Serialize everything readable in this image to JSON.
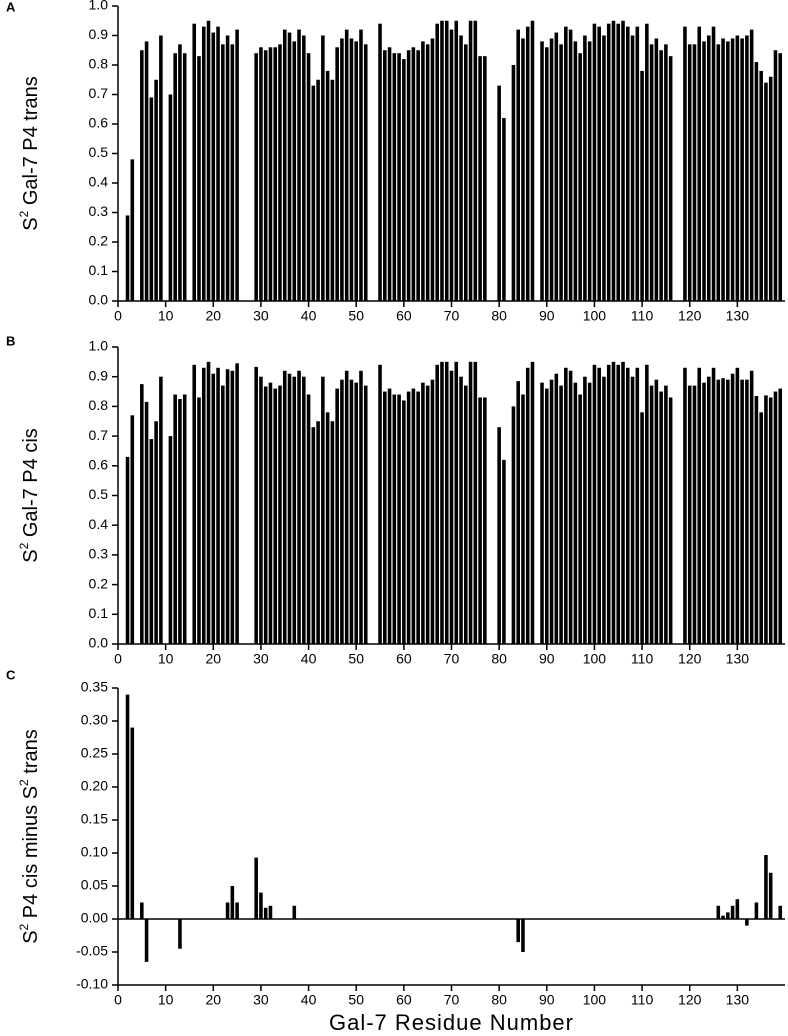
{
  "chart_data": [
    {
      "type": "bar",
      "panel": "A",
      "ylabel_parts": [
        "S",
        "2",
        " Gal-7 P4 trans"
      ],
      "xlabel": "Gal-7 Residue Number",
      "color": "#000000",
      "x": [
        2,
        3,
        5,
        6,
        7,
        8,
        9,
        11,
        12,
        13,
        14,
        16,
        17,
        18,
        19,
        20,
        21,
        22,
        23,
        24,
        25,
        29,
        30,
        31,
        32,
        33,
        34,
        35,
        36,
        37,
        38,
        39,
        40,
        41,
        42,
        43,
        44,
        45,
        46,
        47,
        48,
        49,
        50,
        51,
        52,
        55,
        56,
        57,
        58,
        59,
        60,
        61,
        62,
        63,
        64,
        65,
        66,
        67,
        68,
        69,
        70,
        71,
        72,
        73,
        74,
        75,
        76,
        77,
        80,
        81,
        83,
        84,
        85,
        86,
        87,
        89,
        90,
        91,
        92,
        93,
        94,
        95,
        96,
        97,
        98,
        99,
        100,
        101,
        102,
        103,
        104,
        105,
        106,
        107,
        108,
        109,
        110,
        111,
        112,
        113,
        114,
        115,
        116,
        119,
        120,
        121,
        122,
        123,
        124,
        125,
        126,
        127,
        128,
        129,
        130,
        131,
        132,
        133,
        134,
        135,
        136,
        137,
        138,
        139
      ],
      "values": [
        0.29,
        0.48,
        0.85,
        0.88,
        0.69,
        0.75,
        0.9,
        0.7,
        0.84,
        0.87,
        0.84,
        0.94,
        0.83,
        0.93,
        0.95,
        0.91,
        0.93,
        0.87,
        0.9,
        0.87,
        0.92,
        0.84,
        0.86,
        0.85,
        0.86,
        0.86,
        0.87,
        0.92,
        0.91,
        0.88,
        0.92,
        0.9,
        0.84,
        0.73,
        0.75,
        0.9,
        0.78,
        0.75,
        0.86,
        0.89,
        0.92,
        0.89,
        0.88,
        0.92,
        0.87,
        0.94,
        0.85,
        0.86,
        0.84,
        0.84,
        0.82,
        0.85,
        0.86,
        0.85,
        0.88,
        0.87,
        0.89,
        0.94,
        0.95,
        0.95,
        0.92,
        0.95,
        0.9,
        0.87,
        0.95,
        0.95,
        0.83,
        0.83,
        0.73,
        0.62,
        0.8,
        0.92,
        0.89,
        0.93,
        0.95,
        0.88,
        0.86,
        0.89,
        0.91,
        0.87,
        0.93,
        0.92,
        0.88,
        0.84,
        0.9,
        0.88,
        0.94,
        0.93,
        0.9,
        0.94,
        0.95,
        0.94,
        0.95,
        0.93,
        0.9,
        0.93,
        0.78,
        0.94,
        0.87,
        0.89,
        0.85,
        0.87,
        0.83,
        0.93,
        0.87,
        0.87,
        0.93,
        0.88,
        0.9,
        0.93,
        0.87,
        0.89,
        0.88,
        0.89,
        0.9,
        0.89,
        0.9,
        0.92,
        0.81,
        0.78,
        0.74,
        0.76,
        0.85,
        0.84
      ],
      "xlim": [
        0,
        140
      ],
      "xticks": [
        0,
        10,
        20,
        30,
        40,
        50,
        60,
        70,
        80,
        90,
        100,
        110,
        120,
        130
      ],
      "ylim": [
        0,
        1.0
      ],
      "yticks": [
        {
          "value": 0,
          "label": "0.0"
        },
        0.1,
        0.2,
        0.3,
        0.4,
        0.5,
        0.6,
        0.7,
        0.8,
        0.9,
        {
          "value": 1.0,
          "label": "1.0"
        }
      ]
    },
    {
      "type": "bar",
      "panel": "B",
      "ylabel_parts": [
        "S",
        "2",
        " Gal-7 P4 cis"
      ],
      "color": "#000000",
      "x": [
        2,
        3,
        5,
        6,
        7,
        8,
        9,
        11,
        12,
        13,
        14,
        16,
        17,
        18,
        19,
        20,
        21,
        22,
        23,
        24,
        25,
        29,
        30,
        31,
        32,
        33,
        34,
        35,
        36,
        37,
        38,
        39,
        40,
        41,
        42,
        43,
        44,
        45,
        46,
        47,
        48,
        49,
        50,
        51,
        52,
        55,
        56,
        57,
        58,
        59,
        60,
        61,
        62,
        63,
        64,
        65,
        66,
        67,
        68,
        69,
        70,
        71,
        72,
        73,
        74,
        75,
        76,
        77,
        80,
        81,
        83,
        84,
        85,
        86,
        87,
        89,
        90,
        91,
        92,
        93,
        94,
        95,
        96,
        97,
        98,
        99,
        100,
        101,
        102,
        103,
        104,
        105,
        106,
        107,
        108,
        109,
        110,
        111,
        112,
        113,
        114,
        115,
        116,
        119,
        120,
        121,
        122,
        123,
        124,
        125,
        126,
        127,
        128,
        129,
        130,
        131,
        132,
        133,
        134,
        135,
        136,
        137,
        138,
        139
      ],
      "values": [
        0.63,
        0.77,
        0.875,
        0.815,
        0.69,
        0.75,
        0.9,
        0.7,
        0.84,
        0.825,
        0.84,
        0.94,
        0.83,
        0.93,
        0.95,
        0.91,
        0.93,
        0.87,
        0.925,
        0.92,
        0.945,
        0.933,
        0.9,
        0.867,
        0.88,
        0.86,
        0.87,
        0.92,
        0.91,
        0.9,
        0.92,
        0.9,
        0.84,
        0.73,
        0.75,
        0.9,
        0.78,
        0.75,
        0.86,
        0.89,
        0.92,
        0.89,
        0.88,
        0.92,
        0.87,
        0.94,
        0.85,
        0.86,
        0.84,
        0.84,
        0.82,
        0.85,
        0.86,
        0.85,
        0.88,
        0.87,
        0.89,
        0.94,
        0.95,
        0.95,
        0.92,
        0.95,
        0.9,
        0.87,
        0.95,
        0.95,
        0.83,
        0.83,
        0.73,
        0.62,
        0.8,
        0.885,
        0.84,
        0.93,
        0.95,
        0.88,
        0.86,
        0.89,
        0.91,
        0.87,
        0.93,
        0.92,
        0.88,
        0.84,
        0.9,
        0.88,
        0.94,
        0.93,
        0.9,
        0.94,
        0.95,
        0.94,
        0.95,
        0.93,
        0.9,
        0.93,
        0.78,
        0.94,
        0.87,
        0.89,
        0.85,
        0.87,
        0.83,
        0.93,
        0.87,
        0.87,
        0.93,
        0.88,
        0.9,
        0.93,
        0.89,
        0.895,
        0.89,
        0.91,
        0.93,
        0.89,
        0.89,
        0.92,
        0.835,
        0.78,
        0.837,
        0.83,
        0.85,
        0.86
      ],
      "xlim": [
        0,
        140
      ],
      "xticks": [
        0,
        10,
        20,
        30,
        40,
        50,
        60,
        70,
        80,
        90,
        100,
        110,
        120,
        130
      ],
      "ylim": [
        0,
        1.0
      ],
      "yticks": [
        {
          "value": 0,
          "label": "0.0"
        },
        0.1,
        0.2,
        0.3,
        0.4,
        0.5,
        0.6,
        0.7,
        0.8,
        0.9,
        {
          "value": 1.0,
          "label": "1.0"
        }
      ]
    },
    {
      "type": "bar",
      "panel": "C",
      "ylabel_parts": [
        "S",
        "2",
        " P4 cis minus S",
        "2",
        " trans"
      ],
      "color": "#000000",
      "x": [
        2,
        3,
        5,
        6,
        7,
        8,
        9,
        11,
        12,
        13,
        14,
        16,
        17,
        18,
        19,
        20,
        21,
        22,
        23,
        24,
        25,
        29,
        30,
        31,
        32,
        33,
        34,
        35,
        36,
        37,
        38,
        39,
        40,
        41,
        42,
        43,
        44,
        45,
        46,
        47,
        48,
        49,
        50,
        51,
        52,
        55,
        56,
        57,
        58,
        59,
        60,
        61,
        62,
        63,
        64,
        65,
        66,
        67,
        68,
        69,
        70,
        71,
        72,
        73,
        74,
        75,
        76,
        77,
        80,
        81,
        83,
        84,
        85,
        86,
        87,
        89,
        90,
        91,
        92,
        93,
        94,
        95,
        96,
        97,
        98,
        99,
        100,
        101,
        102,
        103,
        104,
        105,
        106,
        107,
        108,
        109,
        110,
        111,
        112,
        113,
        114,
        115,
        116,
        119,
        120,
        121,
        122,
        123,
        124,
        125,
        126,
        127,
        128,
        129,
        130,
        131,
        132,
        133,
        134,
        135,
        136,
        137,
        138,
        139
      ],
      "values": [
        0.34,
        0.29,
        0.025,
        -0.065,
        0,
        0,
        0,
        0,
        0,
        -0.045,
        0,
        0,
        0,
        0,
        0,
        0,
        0,
        0,
        0.025,
        0.05,
        0.025,
        0.093,
        0.04,
        0.017,
        0.02,
        0,
        0,
        0,
        0,
        0.02,
        0,
        0,
        0,
        0,
        0,
        0,
        0,
        0,
        0,
        0,
        0,
        0,
        0,
        0,
        0,
        0,
        0,
        0,
        0,
        0,
        0,
        0,
        0,
        0,
        0,
        0,
        0,
        0,
        0,
        0,
        0,
        0,
        0,
        0,
        0,
        0,
        0,
        0,
        0,
        0,
        0,
        -0.035,
        -0.05,
        0,
        0,
        0,
        0,
        0,
        0,
        0,
        0,
        0,
        0,
        0,
        0,
        0,
        0,
        0,
        0,
        0,
        0,
        0,
        0,
        0,
        0,
        0,
        0,
        0,
        0,
        0,
        0,
        0,
        0,
        0,
        0,
        0,
        0,
        0,
        0,
        0,
        0.02,
        0.005,
        0.01,
        0.02,
        0.03,
        0,
        -0.01,
        0,
        0.025,
        0,
        0.097,
        0.07,
        0,
        0.02
      ],
      "xlim": [
        0,
        140
      ],
      "xticks": [
        0,
        10,
        20,
        30,
        40,
        50,
        60,
        70,
        80,
        90,
        100,
        110,
        120,
        130
      ],
      "ylim": [
        -0.1,
        0.35
      ],
      "yticks": [
        0.35,
        {
          "value": 0.3,
          "label": "0.30"
        },
        0.25,
        {
          "value": 0.2,
          "label": "0.20"
        },
        0.15,
        {
          "value": 0.1,
          "label": "0.10"
        },
        0.05,
        {
          "value": 0,
          "label": "0.00"
        },
        -0.05,
        {
          "value": -0.1,
          "label": "-0.10"
        }
      ]
    }
  ]
}
